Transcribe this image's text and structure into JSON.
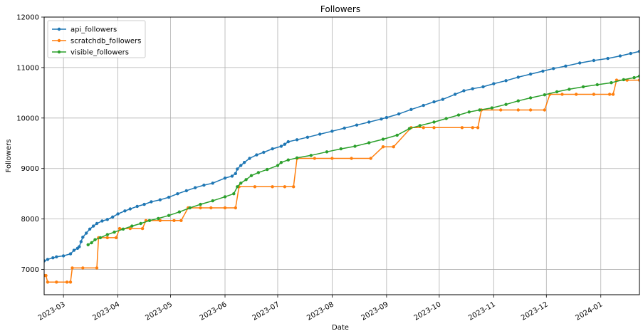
{
  "chart_data": {
    "type": "line",
    "title": "Followers",
    "xlabel": "Date",
    "ylabel": "Followers",
    "x_axis_type": "date",
    "xlim": [
      "2023-02-18",
      "2024-01-23"
    ],
    "ylim": [
      6500,
      12000
    ],
    "x_ticks": [
      {
        "date": "2023-03-01",
        "label": "2023-03"
      },
      {
        "date": "2023-04-01",
        "label": "2023-04"
      },
      {
        "date": "2023-05-01",
        "label": "2023-05"
      },
      {
        "date": "2023-06-01",
        "label": "2023-06"
      },
      {
        "date": "2023-07-01",
        "label": "2023-07"
      },
      {
        "date": "2023-08-01",
        "label": "2023-08"
      },
      {
        "date": "2023-09-01",
        "label": "2023-09"
      },
      {
        "date": "2023-10-01",
        "label": "2023-10"
      },
      {
        "date": "2023-11-01",
        "label": "2023-11"
      },
      {
        "date": "2023-12-01",
        "label": "2023-12"
      },
      {
        "date": "2024-01-01",
        "label": "2024-01"
      }
    ],
    "y_ticks": [
      7000,
      8000,
      9000,
      10000,
      11000,
      12000
    ],
    "grid": true,
    "legend_position": "top-left",
    "series": [
      {
        "name": "api_followers",
        "color": "#1f77b4",
        "points": [
          [
            "2023-02-18",
            7170
          ],
          [
            "2023-02-20",
            7200
          ],
          [
            "2023-02-23",
            7230
          ],
          [
            "2023-02-25",
            7250
          ],
          [
            "2023-03-01",
            7270
          ],
          [
            "2023-03-05",
            7310
          ],
          [
            "2023-03-07",
            7380
          ],
          [
            "2023-03-09",
            7420
          ],
          [
            "2023-03-10",
            7450
          ],
          [
            "2023-03-11",
            7550
          ],
          [
            "2023-03-12",
            7640
          ],
          [
            "2023-03-14",
            7720
          ],
          [
            "2023-03-16",
            7800
          ],
          [
            "2023-03-18",
            7860
          ],
          [
            "2023-03-20",
            7910
          ],
          [
            "2023-03-23",
            7960
          ],
          [
            "2023-03-26",
            7990
          ],
          [
            "2023-03-29",
            8040
          ],
          [
            "2023-04-01",
            8100
          ],
          [
            "2023-04-05",
            8160
          ],
          [
            "2023-04-08",
            8200
          ],
          [
            "2023-04-12",
            8250
          ],
          [
            "2023-04-16",
            8290
          ],
          [
            "2023-04-20",
            8340
          ],
          [
            "2023-04-25",
            8380
          ],
          [
            "2023-04-30",
            8430
          ],
          [
            "2023-05-05",
            8500
          ],
          [
            "2023-05-10",
            8560
          ],
          [
            "2023-05-15",
            8620
          ],
          [
            "2023-05-20",
            8670
          ],
          [
            "2023-05-25",
            8710
          ],
          [
            "2023-06-01",
            8810
          ],
          [
            "2023-06-05",
            8850
          ],
          [
            "2023-06-07",
            8900
          ],
          [
            "2023-06-08",
            8990
          ],
          [
            "2023-06-10",
            9060
          ],
          [
            "2023-06-12",
            9120
          ],
          [
            "2023-06-15",
            9200
          ],
          [
            "2023-06-19",
            9270
          ],
          [
            "2023-06-23",
            9320
          ],
          [
            "2023-06-28",
            9390
          ],
          [
            "2023-07-03",
            9440
          ],
          [
            "2023-07-05",
            9480
          ],
          [
            "2023-07-07",
            9530
          ],
          [
            "2023-07-12",
            9570
          ],
          [
            "2023-07-18",
            9620
          ],
          [
            "2023-07-25",
            9680
          ],
          [
            "2023-08-01",
            9740
          ],
          [
            "2023-08-08",
            9800
          ],
          [
            "2023-08-15",
            9860
          ],
          [
            "2023-08-22",
            9920
          ],
          [
            "2023-08-29",
            9980
          ],
          [
            "2023-09-01",
            10010
          ],
          [
            "2023-09-08",
            10080
          ],
          [
            "2023-09-15",
            10170
          ],
          [
            "2023-09-22",
            10250
          ],
          [
            "2023-09-28",
            10320
          ],
          [
            "2023-10-03",
            10370
          ],
          [
            "2023-10-10",
            10470
          ],
          [
            "2023-10-15",
            10540
          ],
          [
            "2023-10-20",
            10580
          ],
          [
            "2023-10-26",
            10620
          ],
          [
            "2023-11-01",
            10680
          ],
          [
            "2023-11-08",
            10740
          ],
          [
            "2023-11-15",
            10810
          ],
          [
            "2023-11-22",
            10870
          ],
          [
            "2023-11-29",
            10930
          ],
          [
            "2023-12-05",
            10980
          ],
          [
            "2023-12-12",
            11030
          ],
          [
            "2023-12-20",
            11090
          ],
          [
            "2023-12-28",
            11140
          ],
          [
            "2024-01-05",
            11180
          ],
          [
            "2024-01-12",
            11230
          ],
          [
            "2024-01-18",
            11280
          ],
          [
            "2024-01-23",
            11320
          ]
        ]
      },
      {
        "name": "scratchdb_followers",
        "color": "#ff7f0e",
        "points": [
          [
            "2023-02-18",
            6880
          ],
          [
            "2023-02-19",
            6880
          ],
          [
            "2023-02-20",
            6750
          ],
          [
            "2023-02-25",
            6750
          ],
          [
            "2023-03-03",
            6750
          ],
          [
            "2023-03-05",
            6750
          ],
          [
            "2023-03-06",
            7030
          ],
          [
            "2023-03-12",
            7030
          ],
          [
            "2023-03-20",
            7030
          ],
          [
            "2023-03-21",
            7630
          ],
          [
            "2023-03-26",
            7630
          ],
          [
            "2023-03-31",
            7630
          ],
          [
            "2023-04-02",
            7810
          ],
          [
            "2023-04-08",
            7810
          ],
          [
            "2023-04-15",
            7810
          ],
          [
            "2023-04-17",
            7970
          ],
          [
            "2023-04-25",
            7970
          ],
          [
            "2023-05-03",
            7970
          ],
          [
            "2023-05-07",
            7970
          ],
          [
            "2023-05-11",
            8220
          ],
          [
            "2023-05-18",
            8220
          ],
          [
            "2023-05-24",
            8220
          ],
          [
            "2023-06-01",
            8220
          ],
          [
            "2023-06-07",
            8220
          ],
          [
            "2023-06-09",
            8640
          ],
          [
            "2023-06-18",
            8640
          ],
          [
            "2023-06-28",
            8640
          ],
          [
            "2023-07-05",
            8640
          ],
          [
            "2023-07-10",
            8640
          ],
          [
            "2023-07-12",
            9200
          ],
          [
            "2023-07-22",
            9200
          ],
          [
            "2023-08-01",
            9200
          ],
          [
            "2023-08-12",
            9200
          ],
          [
            "2023-08-23",
            9200
          ],
          [
            "2023-08-30",
            9430
          ],
          [
            "2023-09-05",
            9430
          ],
          [
            "2023-09-15",
            9810
          ],
          [
            "2023-09-22",
            9810
          ],
          [
            "2023-09-28",
            9810
          ],
          [
            "2023-10-14",
            9810
          ],
          [
            "2023-10-20",
            9810
          ],
          [
            "2023-10-23",
            9810
          ],
          [
            "2023-10-25",
            10160
          ],
          [
            "2023-11-05",
            10160
          ],
          [
            "2023-11-15",
            10160
          ],
          [
            "2023-11-22",
            10160
          ],
          [
            "2023-11-30",
            10160
          ],
          [
            "2023-12-03",
            10470
          ],
          [
            "2023-12-10",
            10470
          ],
          [
            "2023-12-18",
            10470
          ],
          [
            "2023-12-28",
            10470
          ],
          [
            "2024-01-06",
            10470
          ],
          [
            "2024-01-08",
            10470
          ],
          [
            "2024-01-10",
            10750
          ],
          [
            "2024-01-16",
            10750
          ],
          [
            "2024-01-23",
            10750
          ]
        ]
      },
      {
        "name": "visible_followers",
        "color": "#2ca02c",
        "points": [
          [
            "2023-03-15",
            7490
          ],
          [
            "2023-03-17",
            7530
          ],
          [
            "2023-03-19",
            7590
          ],
          [
            "2023-03-22",
            7630
          ],
          [
            "2023-03-26",
            7690
          ],
          [
            "2023-03-30",
            7740
          ],
          [
            "2023-04-04",
            7800
          ],
          [
            "2023-04-09",
            7860
          ],
          [
            "2023-04-14",
            7910
          ],
          [
            "2023-04-19",
            7970
          ],
          [
            "2023-04-24",
            8010
          ],
          [
            "2023-04-30",
            8070
          ],
          [
            "2023-05-06",
            8140
          ],
          [
            "2023-05-12",
            8220
          ],
          [
            "2023-05-18",
            8290
          ],
          [
            "2023-05-25",
            8360
          ],
          [
            "2023-06-01",
            8440
          ],
          [
            "2023-06-06",
            8500
          ],
          [
            "2023-06-08",
            8640
          ],
          [
            "2023-06-10",
            8710
          ],
          [
            "2023-06-13",
            8780
          ],
          [
            "2023-06-16",
            8860
          ],
          [
            "2023-06-20",
            8920
          ],
          [
            "2023-06-25",
            8980
          ],
          [
            "2023-07-01",
            9060
          ],
          [
            "2023-07-03",
            9120
          ],
          [
            "2023-07-07",
            9170
          ],
          [
            "2023-07-12",
            9210
          ],
          [
            "2023-07-20",
            9260
          ],
          [
            "2023-07-29",
            9330
          ],
          [
            "2023-08-06",
            9390
          ],
          [
            "2023-08-14",
            9440
          ],
          [
            "2023-08-22",
            9510
          ],
          [
            "2023-08-30",
            9580
          ],
          [
            "2023-09-07",
            9660
          ],
          [
            "2023-09-14",
            9790
          ],
          [
            "2023-09-20",
            9850
          ],
          [
            "2023-09-28",
            9920
          ],
          [
            "2023-10-05",
            9990
          ],
          [
            "2023-10-12",
            10060
          ],
          [
            "2023-10-18",
            10120
          ],
          [
            "2023-10-24",
            10160
          ],
          [
            "2023-10-31",
            10200
          ],
          [
            "2023-11-08",
            10270
          ],
          [
            "2023-11-15",
            10340
          ],
          [
            "2023-11-22",
            10400
          ],
          [
            "2023-11-30",
            10460
          ],
          [
            "2023-12-07",
            10520
          ],
          [
            "2023-12-14",
            10570
          ],
          [
            "2023-12-22",
            10620
          ],
          [
            "2023-12-30",
            10660
          ],
          [
            "2024-01-07",
            10700
          ],
          [
            "2024-01-14",
            10760
          ],
          [
            "2024-01-20",
            10800
          ],
          [
            "2024-01-23",
            10830
          ]
        ]
      }
    ]
  }
}
